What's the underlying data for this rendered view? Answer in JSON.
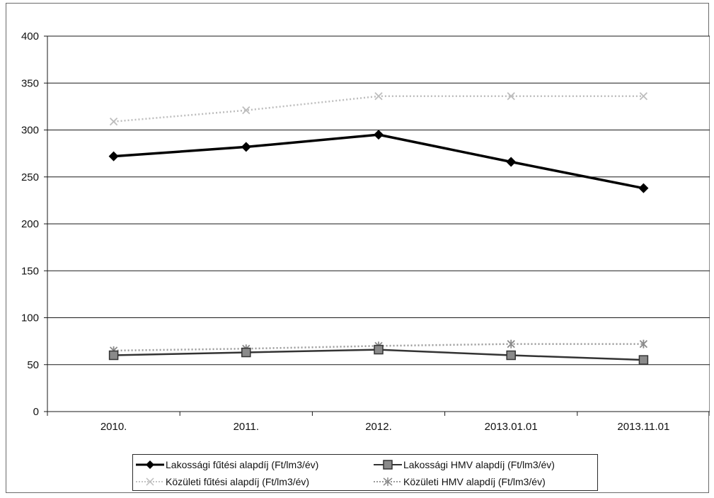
{
  "chart_data": {
    "type": "line",
    "categories": [
      "2010.",
      "2011.",
      "2012.",
      "2013.01.01",
      "2013.11.01"
    ],
    "ylim": [
      0,
      400
    ],
    "yticks": [
      0,
      50,
      100,
      150,
      200,
      250,
      300,
      350,
      400
    ],
    "grid": true,
    "legend_position": "bottom",
    "title": "",
    "xlabel": "",
    "ylabel": "",
    "series": [
      {
        "name": "Lakossági fűtési alapdíj (Ft/lm3/év)",
        "values": [
          272,
          282,
          295,
          266,
          238
        ],
        "color": "#000000",
        "marker": "diamond",
        "style": "solid-thick"
      },
      {
        "name": "Lakossági HMV alapdíj (Ft/lm3/év)",
        "values": [
          60,
          63,
          66,
          60,
          55
        ],
        "color": "#333333",
        "marker": "square",
        "style": "solid"
      },
      {
        "name": "Közületi fűtési alapdíj (Ft/lm3/év)",
        "values": [
          309,
          321,
          336,
          336,
          336
        ],
        "color": "#bdbdbd",
        "marker": "cross",
        "style": "dotted"
      },
      {
        "name": "Közületi HMV alapdíj (Ft/lm3/év)",
        "values": [
          65,
          67,
          70,
          72,
          72
        ],
        "color": "#9a9a9a",
        "marker": "star",
        "style": "dotted"
      }
    ]
  }
}
